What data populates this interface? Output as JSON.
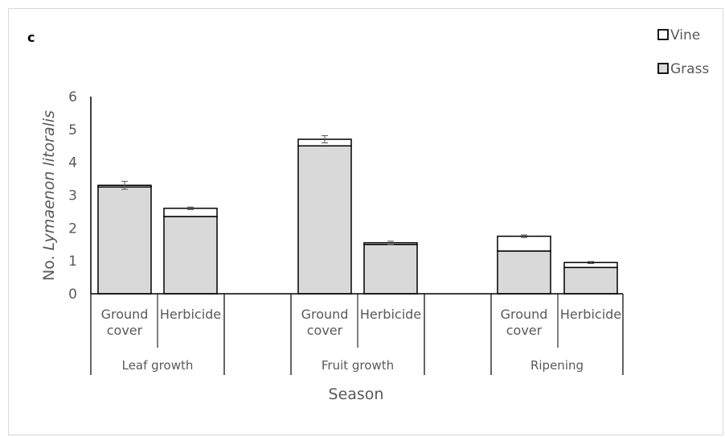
{
  "chart_data": {
    "type": "bar",
    "stacked": true,
    "panel_label": "c",
    "title": "",
    "ylabel_prefix": "No. ",
    "ylabel_italic": "Lymaenon litoralis",
    "xlabel": "Season",
    "ylim": [
      0,
      6
    ],
    "yticks": [
      "0",
      "1",
      "2",
      "3",
      "4",
      "5",
      "6"
    ],
    "grid": false,
    "legend_position": "top-right",
    "groups": [
      {
        "season": "Leaf growth",
        "categories": [
          "Ground cover",
          "Herbicide"
        ]
      },
      {
        "season": "Fruit growth",
        "categories": [
          "Ground cover",
          "Herbicide"
        ]
      },
      {
        "season": "Ripening",
        "categories": [
          "Ground cover",
          "Herbicide"
        ]
      }
    ],
    "category_lines": {
      "Ground cover": [
        "Ground",
        "cover"
      ],
      "Herbicide": [
        "Herbicide"
      ]
    },
    "series": [
      {
        "name": "Grass",
        "color": "#d9d9d9",
        "values": [
          3.25,
          2.35,
          4.5,
          1.5,
          1.3,
          0.8
        ]
      },
      {
        "name": "Vine",
        "color": "#ffffff",
        "values": [
          0.05,
          0.25,
          0.2,
          0.05,
          0.45,
          0.15
        ]
      }
    ],
    "error_bar_tops": [
      3.3,
      2.6,
      4.7,
      1.55,
      1.75,
      0.95
    ],
    "error_bar_half": [
      0.12,
      0.04,
      0.11,
      0.05,
      0.04,
      0.03
    ]
  }
}
